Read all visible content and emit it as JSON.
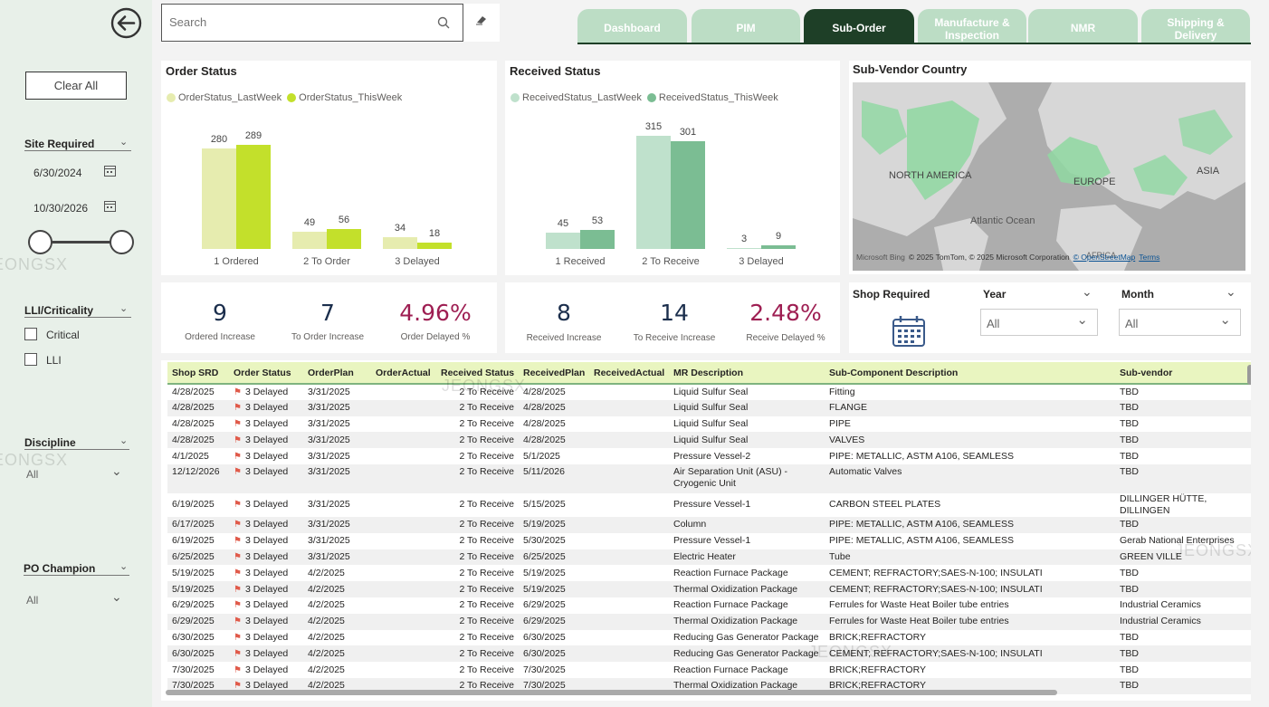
{
  "sidebar": {
    "back_icon": "back-arrow-icon",
    "clear_all": "Clear All",
    "site_required": {
      "label": "Site Required",
      "date_from": "6/30/2024",
      "date_to": "10/30/2026"
    },
    "lli": {
      "label": "LLI/Criticality",
      "options": [
        "Critical",
        "LLI"
      ]
    },
    "discipline": {
      "label": "Discipline",
      "value": "All"
    },
    "po_champion": {
      "label": "PO Champion",
      "value": "All"
    }
  },
  "search": {
    "placeholder": "Search"
  },
  "tabs": [
    "Dashboard",
    "PIM",
    "Sub-Order",
    "Manufacture &\nInspection",
    "NMR",
    "Shipping &\nDelivery"
  ],
  "active_tab": "Sub-Order",
  "order_status": {
    "title": "Order Status",
    "legend": [
      "OrderStatus_LastWeek",
      "OrderStatus_ThisWeek"
    ],
    "chart_data": {
      "type": "bar",
      "categories": [
        "1 Ordered",
        "2 To Order",
        "3 Delayed"
      ],
      "series": [
        {
          "name": "OrderStatus_LastWeek",
          "values": [
            280,
            49,
            34
          ],
          "color": "#e6ecaf"
        },
        {
          "name": "OrderStatus_ThisWeek",
          "values": [
            289,
            56,
            18
          ],
          "color": "#c3e02b"
        }
      ]
    }
  },
  "received_status": {
    "title": "Received Status",
    "legend": [
      "ReceivedStatus_LastWeek",
      "ReceivedStatus_ThisWeek"
    ],
    "chart_data": {
      "type": "bar",
      "categories": [
        "1 Received",
        "2 To Receive",
        "3 Delayed"
      ],
      "series": [
        {
          "name": "ReceivedStatus_LastWeek",
          "values": [
            45,
            315,
            3
          ],
          "color": "#bfe1cc"
        },
        {
          "name": "ReceivedStatus_ThisWeek",
          "values": [
            53,
            301,
            9
          ],
          "color": "#7bbd93"
        }
      ]
    }
  },
  "map": {
    "title": "Sub-Vendor Country",
    "labels": [
      "NORTH AMERICA",
      "EUROPE",
      "ASIA",
      "Atlantic Ocean",
      "AFRICA"
    ],
    "brand": "Microsoft Bing",
    "credit": "© 2025 TomTom, © 2025 Microsoft Corporation",
    "osm": "© OpenStreetMap",
    "terms": "Terms"
  },
  "kpi_order": [
    {
      "value": "9",
      "label": "Ordered Increase",
      "color": "#1b2e4c"
    },
    {
      "value": "7",
      "label": "To Order Increase",
      "color": "#1b2e4c"
    },
    {
      "value": "4.96%",
      "label": "Order Delayed %",
      "color": "#9e1e52"
    }
  ],
  "kpi_received": [
    {
      "value": "8",
      "label": "Received Increase",
      "color": "#1b2e4c"
    },
    {
      "value": "14",
      "label": "To Receive Increase",
      "color": "#1b2e4c"
    },
    {
      "value": "2.48%",
      "label": "Receive Delayed %",
      "color": "#9e1e52"
    }
  ],
  "filters": {
    "shop_required": "Shop Required",
    "year": {
      "label": "Year",
      "value": "All"
    },
    "month": {
      "label": "Month",
      "value": "All"
    }
  },
  "table": {
    "columns": [
      "Shop SRD",
      "Order Status",
      "OrderPlan",
      "OrderActual",
      "Received Status",
      "ReceivedPlan",
      "ReceivedActual",
      "MR Description",
      "Sub-Component Description",
      "Sub-vendor"
    ],
    "rows": [
      [
        "4/28/2025",
        "3 Delayed",
        "3/31/2025",
        "",
        "2 To Receive",
        "4/28/2025",
        "",
        "Liquid Sulfur Seal",
        "Fitting",
        "TBD"
      ],
      [
        "4/28/2025",
        "3 Delayed",
        "3/31/2025",
        "",
        "2 To Receive",
        "4/28/2025",
        "",
        "Liquid Sulfur Seal",
        "FLANGE",
        "TBD"
      ],
      [
        "4/28/2025",
        "3 Delayed",
        "3/31/2025",
        "",
        "2 To Receive",
        "4/28/2025",
        "",
        "Liquid Sulfur Seal",
        "PIPE",
        "TBD"
      ],
      [
        "4/28/2025",
        "3 Delayed",
        "3/31/2025",
        "",
        "2 To Receive",
        "4/28/2025",
        "",
        "Liquid Sulfur Seal",
        "VALVES",
        "TBD"
      ],
      [
        "4/1/2025",
        "3 Delayed",
        "3/31/2025",
        "",
        "2 To Receive",
        "5/1/2025",
        "",
        "Pressure Vessel-2",
        "PIPE: METALLIC, ASTM A106, SEAMLESS",
        "TBD"
      ],
      [
        "12/12/2026",
        "3 Delayed",
        "3/31/2025",
        "",
        "2 To Receive",
        "5/11/2026",
        "",
        "Air Separation Unit (ASU) -\nCryogenic Unit",
        "Automatic Valves",
        "TBD"
      ],
      [
        "6/19/2025",
        "3 Delayed",
        "3/31/2025",
        "",
        "2 To Receive",
        "5/15/2025",
        "",
        "Pressure Vessel-1",
        "CARBON STEEL PLATES",
        "DILLINGER HÜTTE, DILLINGEN"
      ],
      [
        "6/17/2025",
        "3 Delayed",
        "3/31/2025",
        "",
        "2 To Receive",
        "5/19/2025",
        "",
        "Column",
        "PIPE: METALLIC, ASTM A106, SEAMLESS",
        "TBD"
      ],
      [
        "6/19/2025",
        "3 Delayed",
        "3/31/2025",
        "",
        "2 To Receive",
        "5/30/2025",
        "",
        "Pressure Vessel-1",
        "PIPE: METALLIC, ASTM A106, SEAMLESS",
        "Gerab National Enterprises"
      ],
      [
        "6/25/2025",
        "3 Delayed",
        "3/31/2025",
        "",
        "2 To Receive",
        "6/25/2025",
        "",
        "Electric Heater",
        "Tube",
        "GREEN VILLE"
      ],
      [
        "5/19/2025",
        "3 Delayed",
        "4/2/2025",
        "",
        "2 To Receive",
        "5/19/2025",
        "",
        "Reaction Furnace Package",
        "CEMENT; REFRACTORY;SAES-N-100; INSULATI",
        "TBD"
      ],
      [
        "5/19/2025",
        "3 Delayed",
        "4/2/2025",
        "",
        "2 To Receive",
        "5/19/2025",
        "",
        "Thermal Oxidization Package",
        "CEMENT; REFRACTORY;SAES-N-100; INSULATI",
        "TBD"
      ],
      [
        "6/29/2025",
        "3 Delayed",
        "4/2/2025",
        "",
        "2 To Receive",
        "6/29/2025",
        "",
        "Reaction Furnace Package",
        "Ferrules for Waste Heat Boiler tube entries",
        "Industrial Ceramics"
      ],
      [
        "6/29/2025",
        "3 Delayed",
        "4/2/2025",
        "",
        "2 To Receive",
        "6/29/2025",
        "",
        "Thermal Oxidization Package",
        "Ferrules for Waste Heat Boiler tube entries",
        "Industrial Ceramics"
      ],
      [
        "6/30/2025",
        "3 Delayed",
        "4/2/2025",
        "",
        "2 To Receive",
        "6/30/2025",
        "",
        "Reducing Gas Generator Package",
        "BRICK;REFRACTORY",
        "TBD"
      ],
      [
        "6/30/2025",
        "3 Delayed",
        "4/2/2025",
        "",
        "2 To Receive",
        "6/30/2025",
        "",
        "Reducing Gas Generator Package",
        "CEMENT; REFRACTORY;SAES-N-100; INSULATI",
        "TBD"
      ],
      [
        "7/30/2025",
        "3 Delayed",
        "4/2/2025",
        "",
        "2 To Receive",
        "7/30/2025",
        "",
        "Reaction Furnace Package",
        "BRICK;REFRACTORY",
        "TBD"
      ],
      [
        "7/30/2025",
        "3 Delayed",
        "4/2/2025",
        "",
        "2 To Receive",
        "7/30/2025",
        "",
        "Thermal Oxidization Package",
        "BRICK;REFRACTORY",
        "TBD"
      ]
    ]
  },
  "watermark": "JEONGSX"
}
